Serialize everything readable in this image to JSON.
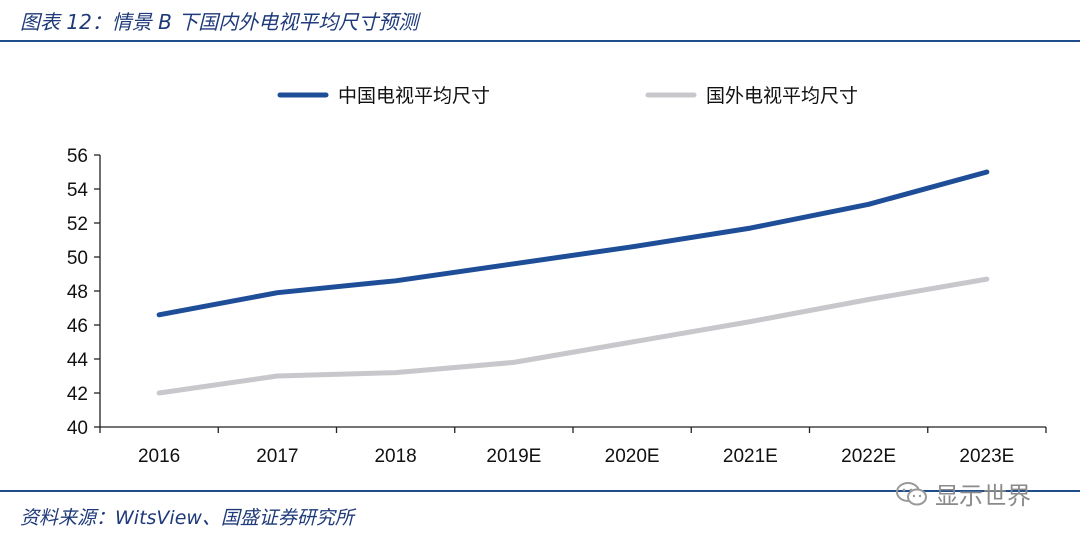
{
  "header": {
    "title": "图表 12：情景 B 下国内外电视平均尺寸预测"
  },
  "footer": {
    "source": "资料来源：WitsView、国盛证券研究所"
  },
  "watermark": {
    "text": "显示世界",
    "icon": "wechat-icon"
  },
  "chart_data": {
    "type": "line",
    "title": "",
    "xlabel": "",
    "ylabel": "",
    "categories": [
      "2016",
      "2017",
      "2018",
      "2019E",
      "2020E",
      "2021E",
      "2022E",
      "2023E"
    ],
    "ylim": [
      40,
      56
    ],
    "yticks": [
      40,
      42,
      44,
      46,
      48,
      50,
      52,
      54,
      56
    ],
    "grid": false,
    "legend_position": "top",
    "series": [
      {
        "name": "中国电视平均尺寸",
        "color": "#1f4e99",
        "values": [
          46.6,
          47.9,
          48.6,
          49.6,
          50.6,
          51.7,
          53.1,
          55.0
        ]
      },
      {
        "name": "国外电视平均尺寸",
        "color": "#c8c8cc",
        "values": [
          42.0,
          43.0,
          43.2,
          43.8,
          45.0,
          46.2,
          47.5,
          48.7
        ]
      }
    ]
  }
}
